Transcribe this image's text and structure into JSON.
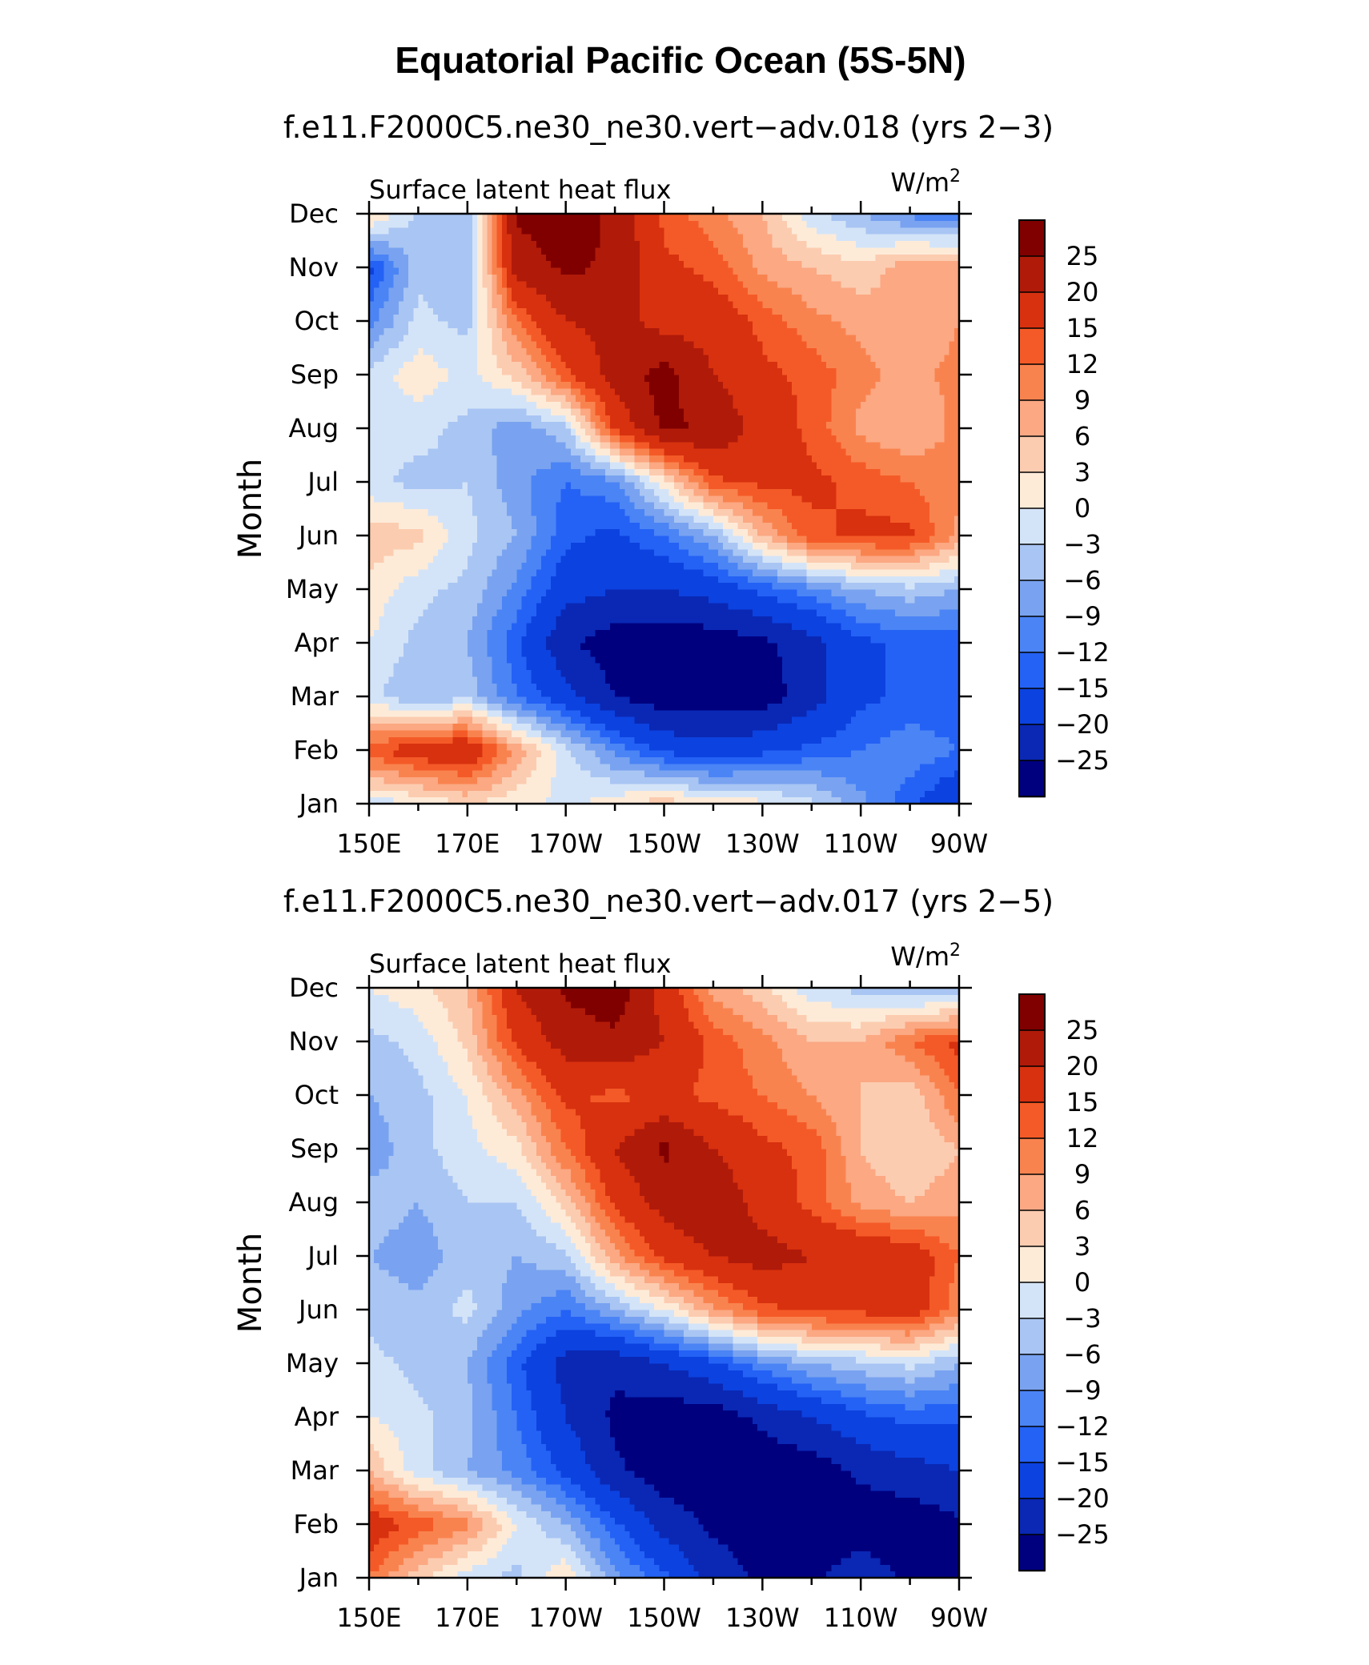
{
  "figure": {
    "title": "Equatorial Pacific Ocean (5S-5N)"
  },
  "colors": {
    "levels": [
      -25,
      -20,
      -15,
      -12,
      -9,
      -6,
      -3,
      0,
      3,
      6,
      9,
      12,
      15,
      20,
      25
    ],
    "fill": [
      "#00007f",
      "#0a28b4",
      "#0c42e0",
      "#2462f5",
      "#4b84f5",
      "#79a3f0",
      "#a9c5f3",
      "#d4e4f8",
      "#fdebd8",
      "#fcccb0",
      "#fba883",
      "#f9834f",
      "#f45a27",
      "#d8310f",
      "#b01a09",
      "#800000"
    ]
  },
  "chart_data": [
    {
      "type": "heatmap",
      "subtitle": "f.e11.F2000C5.ne30_ne30.vert−adv.018 (yrs 2−3)",
      "left_label": "Surface  latent  heat  flux",
      "units_base": "W/m",
      "units_exp": "2",
      "ylabel": "Month",
      "y_ticks": [
        "Jan",
        "Feb",
        "Mar",
        "Apr",
        "May",
        "Jun",
        "Jul",
        "Aug",
        "Sep",
        "Oct",
        "Nov",
        "Dec"
      ],
      "x_ticks": [
        "150E",
        "170E",
        "170W",
        "150W",
        "130W",
        "110W",
        "90W"
      ],
      "x_lon_east": [
        150,
        170,
        190,
        210,
        230,
        250,
        270
      ],
      "xlim_lon_east": [
        150,
        270
      ],
      "colorbar_labels": [
        "25",
        "20",
        "15",
        "12",
        "9",
        "6",
        "3",
        "0",
        "−3",
        "−6",
        "−9",
        "−12",
        "−15",
        "−20",
        "−25"
      ],
      "x_lon": [
        150,
        160,
        170,
        180,
        190,
        200,
        210,
        220,
        230,
        240,
        250,
        260,
        270
      ],
      "z_rows_jan_to_dec": [
        [
          -2,
          0,
          3,
          1,
          -1,
          2,
          5,
          2,
          1,
          -2,
          -8,
          -14,
          -20
        ],
        [
          14,
          18,
          20,
          8,
          -2,
          -10,
          -16,
          -18,
          -16,
          -14,
          -12,
          -10,
          -12
        ],
        [
          -2,
          -6,
          -4,
          -12,
          -18,
          -25,
          -28,
          -28,
          -28,
          -22,
          -16,
          -14,
          -14
        ],
        [
          0,
          -4,
          -6,
          -14,
          -24,
          -28,
          -28,
          -28,
          -26,
          -22,
          -16,
          -14,
          -14
        ],
        [
          2,
          -2,
          -4,
          -10,
          -18,
          -20,
          -20,
          -18,
          -14,
          -10,
          -6,
          -4,
          -6
        ],
        [
          5,
          4,
          -2,
          -6,
          -14,
          -16,
          -12,
          -6,
          6,
          14,
          16,
          16,
          8
        ],
        [
          -2,
          -4,
          -3,
          -8,
          -12,
          -10,
          2,
          14,
          16,
          16,
          14,
          12,
          10
        ],
        [
          -2,
          -2,
          -4,
          -8,
          -4,
          16,
          26,
          24,
          18,
          14,
          8,
          6,
          10
        ],
        [
          -2,
          2,
          -1,
          4,
          14,
          22,
          27,
          20,
          16,
          14,
          10,
          8,
          10
        ],
        [
          -10,
          -2,
          -4,
          12,
          20,
          22,
          18,
          18,
          14,
          10,
          8,
          6,
          9
        ],
        [
          -16,
          -4,
          -6,
          22,
          26,
          24,
          16,
          14,
          8,
          6,
          4,
          8,
          9
        ],
        [
          4,
          -4,
          -6,
          26,
          28,
          24,
          14,
          10,
          6,
          -2,
          -6,
          -10,
          -12
        ]
      ]
    },
    {
      "type": "heatmap",
      "subtitle": "f.e11.F2000C5.ne30_ne30.vert−adv.017 (yrs 2−5)",
      "left_label": "Surface  latent  heat  flux",
      "units_base": "W/m",
      "units_exp": "2",
      "ylabel": "Month",
      "y_ticks": [
        "Jan",
        "Feb",
        "Mar",
        "Apr",
        "May",
        "Jun",
        "Jul",
        "Aug",
        "Sep",
        "Oct",
        "Nov",
        "Dec"
      ],
      "x_ticks": [
        "150E",
        "170E",
        "170W",
        "150W",
        "130W",
        "110W",
        "90W"
      ],
      "x_lon_east": [
        150,
        170,
        190,
        210,
        230,
        250,
        270
      ],
      "xlim_lon_east": [
        150,
        270
      ],
      "colorbar_labels": [
        "25",
        "20",
        "15",
        "12",
        "9",
        "6",
        "3",
        "0",
        "−3",
        "−6",
        "−9",
        "−12",
        "−15",
        "−20",
        "−25"
      ],
      "x_lon": [
        150,
        160,
        170,
        180,
        190,
        200,
        210,
        220,
        230,
        240,
        250,
        260,
        270
      ],
      "z_rows_jan_to_dec": [
        [
          12,
          4,
          -2,
          -4,
          3,
          -8,
          -14,
          -22,
          -26,
          -26,
          -22,
          -26,
          -26
        ],
        [
          18,
          14,
          10,
          0,
          -6,
          -14,
          -22,
          -26,
          -28,
          -28,
          -28,
          -28,
          -26
        ],
        [
          6,
          -2,
          -6,
          -10,
          -16,
          -24,
          -28,
          -28,
          -28,
          -28,
          -24,
          -22,
          -20
        ],
        [
          0,
          -2,
          -5,
          -12,
          -20,
          -26,
          -28,
          -28,
          -24,
          -20,
          -16,
          -14,
          -14
        ],
        [
          -2,
          -4,
          -6,
          -14,
          -22,
          -24,
          -20,
          -16,
          -10,
          -6,
          -4,
          -2,
          -6
        ],
        [
          -4,
          -5,
          -2,
          -8,
          -12,
          -6,
          0,
          8,
          14,
          16,
          16,
          18,
          10
        ],
        [
          -6,
          -8,
          -4,
          -6,
          -4,
          8,
          16,
          20,
          22,
          20,
          20,
          18,
          12
        ],
        [
          -4,
          -6,
          -3,
          -3,
          4,
          16,
          22,
          24,
          18,
          14,
          8,
          6,
          8
        ],
        [
          -8,
          -4,
          -1,
          2,
          12,
          20,
          26,
          20,
          16,
          14,
          6,
          3,
          6
        ],
        [
          -6,
          -4,
          0,
          8,
          16,
          14,
          16,
          14,
          12,
          9,
          6,
          4,
          12
        ],
        [
          -4,
          -2,
          4,
          16,
          22,
          24,
          20,
          14,
          10,
          6,
          6,
          12,
          16
        ],
        [
          0,
          2,
          6,
          20,
          26,
          28,
          18,
          8,
          4,
          -2,
          -4,
          -6,
          -6
        ]
      ]
    }
  ]
}
